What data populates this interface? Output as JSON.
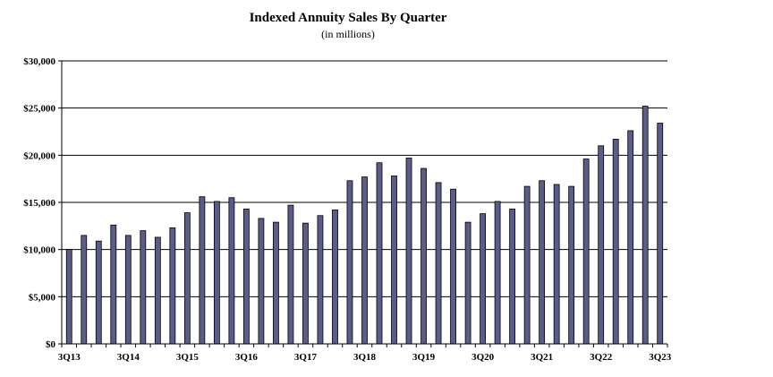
{
  "chart_data": {
    "type": "bar",
    "title": "Indexed Annuity Sales By Quarter",
    "subtitle": "(in millions)",
    "xlabel": "",
    "ylabel": "",
    "ylim": [
      0,
      30000
    ],
    "y_ticks": [
      0,
      5000,
      10000,
      15000,
      20000,
      25000,
      30000
    ],
    "y_tick_labels": [
      "$0",
      "$5,000",
      "$10,000",
      "$15,000",
      "$20,000",
      "$25,000",
      "$30,000"
    ],
    "grid": true,
    "categories": [
      "3Q13",
      "4Q13",
      "1Q14",
      "2Q14",
      "3Q14",
      "4Q14",
      "1Q15",
      "2Q15",
      "3Q15",
      "4Q15",
      "1Q16",
      "2Q16",
      "3Q16",
      "4Q16",
      "1Q17",
      "2Q17",
      "3Q17",
      "4Q17",
      "1Q18",
      "2Q18",
      "3Q18",
      "4Q18",
      "1Q19",
      "2Q19",
      "3Q19",
      "4Q19",
      "1Q20",
      "2Q20",
      "3Q20",
      "4Q20",
      "1Q21",
      "2Q21",
      "3Q21",
      "4Q21",
      "1Q22",
      "2Q22",
      "3Q22",
      "4Q22",
      "1Q23",
      "2Q23",
      "3Q23"
    ],
    "x_tick_labels_shown": [
      "3Q13",
      "3Q14",
      "3Q15",
      "3Q16",
      "3Q17",
      "3Q18",
      "3Q19",
      "3Q20",
      "3Q21",
      "3Q22",
      "3Q23"
    ],
    "values": [
      10000,
      11500,
      10900,
      12600,
      11500,
      12000,
      11300,
      12300,
      13900,
      15600,
      15100,
      15500,
      14300,
      13300,
      12900,
      14700,
      12800,
      13600,
      14200,
      17300,
      17700,
      19200,
      17800,
      19700,
      18600,
      17100,
      16400,
      12900,
      13800,
      15100,
      14300,
      16700,
      17300,
      16900,
      16700,
      19600,
      21000,
      21700,
      22600,
      25200,
      23400
    ],
    "colors": {
      "bar_fill": "#5c5c8a",
      "bar_stroke": "#000000",
      "grid": "#000000"
    }
  }
}
